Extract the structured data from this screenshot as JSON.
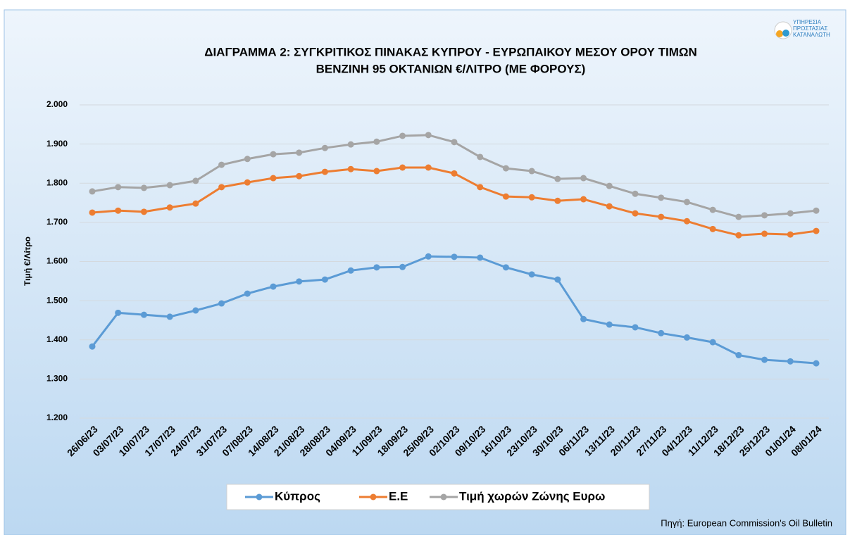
{
  "chart_data": {
    "type": "line",
    "title": "ΔΙΑΓΡΑΜΜΑ 2: ΣΥΓΚΡΙΤΙΚΟΣ ΠΙΝΑΚΑΣ ΚΥΠΡΟΥ - ΕΥΡΩΠΑΙΚΟΥ ΜΕΣΟΥ ΟΡΟΥ ΤΙΜΩΝ",
    "subtitle": "ΒΕΝΖΙΝΗ 95 ΟΚΤΑΝΙΩΝ €/ΛΙΤΡΟ (ΜΕ ΦΟΡΟΥΣ)",
    "y_label": "Τιμή €/Λίτρο",
    "source": "Πηγή: European Commission's Oil Bulletin",
    "logo": [
      "ΥΠΗΡΕΣΙΑ",
      "ΠΡΟΣΤΑΣΙΑΣ",
      "ΚΑΤΑΝΑΛΩΤΗ"
    ],
    "categories": [
      "26/06/23",
      "03/07/23",
      "10/07/23",
      "17/07/23",
      "24/07/23",
      "31/07/23",
      "07/08/23",
      "14/08/23",
      "21/08/23",
      "28/08/23",
      "04/09/23",
      "11/09/23",
      "18/09/23",
      "25/09/23",
      "02/10/23",
      "09/10/23",
      "16/10/23",
      "23/10/23",
      "30/10/23",
      "06/11/23",
      "13/11/23",
      "20/11/23",
      "27/11/23",
      "04/12/23",
      "11/12/23",
      "18/12/23",
      "25/12/23",
      "01/01/24",
      "08/01/24"
    ],
    "series": [
      {
        "name": "Κύπρος",
        "color": "#5b9bd5",
        "values": [
          1.383,
          1.469,
          1.464,
          1.459,
          1.475,
          1.493,
          1.518,
          1.536,
          1.549,
          1.554,
          1.577,
          1.585,
          1.586,
          1.613,
          1.612,
          1.61,
          1.585,
          1.567,
          1.554,
          1.453,
          1.439,
          1.432,
          1.417,
          1.406,
          1.394,
          1.361,
          1.349,
          1.345,
          1.34
        ]
      },
      {
        "name": "Ε.Ε",
        "color": "#ed7d31",
        "values": [
          1.725,
          1.73,
          1.727,
          1.738,
          1.748,
          1.79,
          1.802,
          1.813,
          1.818,
          1.829,
          1.836,
          1.831,
          1.84,
          1.84,
          1.825,
          1.79,
          1.766,
          1.764,
          1.755,
          1.759,
          1.741,
          1.723,
          1.714,
          1.703,
          1.683,
          1.667,
          1.671,
          1.669,
          1.678
        ]
      },
      {
        "name": "Τιμή χωρών Ζώνης Ευρω",
        "color": "#a5a5a5",
        "values": [
          1.779,
          1.79,
          1.788,
          1.795,
          1.806,
          1.847,
          1.862,
          1.874,
          1.878,
          1.89,
          1.899,
          1.906,
          1.921,
          1.923,
          1.905,
          1.867,
          1.838,
          1.831,
          1.811,
          1.813,
          1.793,
          1.773,
          1.763,
          1.752,
          1.732,
          1.714,
          1.718,
          1.723,
          1.73
        ]
      }
    ],
    "ylim": [
      1.2,
      2.0
    ],
    "yticks": [
      {
        "value": 1.2,
        "label": "1.200"
      },
      {
        "value": 1.3,
        "label": "1.300"
      },
      {
        "value": 1.4,
        "label": "1.400"
      },
      {
        "value": 1.5,
        "label": "1.500"
      },
      {
        "value": 1.6,
        "label": "1.600"
      },
      {
        "value": 1.7,
        "label": "1.700"
      },
      {
        "value": 1.8,
        "label": "1.800"
      },
      {
        "value": 1.9,
        "label": "1.900"
      },
      {
        "value": 2.0,
        "label": "2.000"
      }
    ],
    "grid": true,
    "legend": "bottom"
  }
}
